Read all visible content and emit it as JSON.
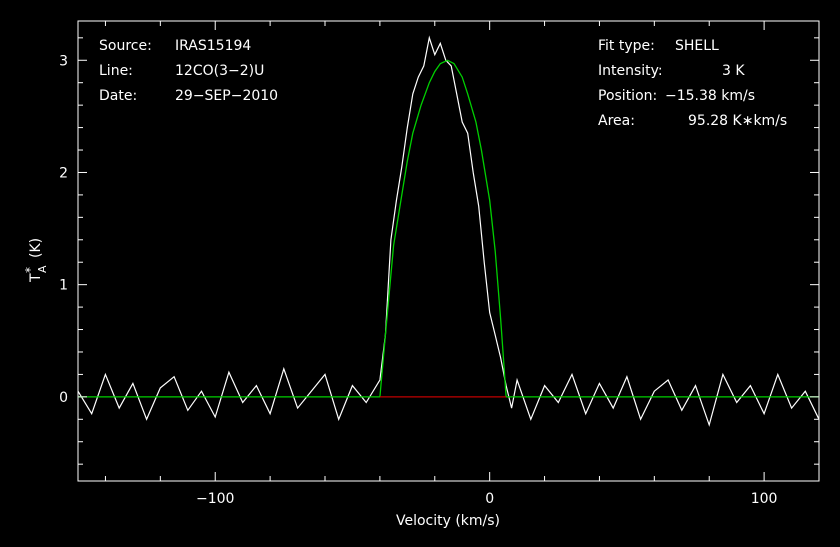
{
  "chart_data": {
    "type": "line",
    "xlabel": "Velocity (km/s)",
    "ylabel": "T",
    "ylabel_sub": "A",
    "ylabel_sup": "*",
    "ylabel_unit": "(K)",
    "xlim": [
      -150,
      120
    ],
    "ylim": [
      -0.75,
      3.35
    ],
    "x_ticks": [
      -100,
      0,
      100
    ],
    "x_tick_labels": [
      "−100",
      "0",
      "100"
    ],
    "y_ticks": [
      0,
      1,
      2,
      3
    ],
    "y_tick_labels": [
      "0",
      "1",
      "2",
      "3"
    ],
    "grid": false,
    "info_left": [
      {
        "key": "Source:",
        "value": "IRAS15194"
      },
      {
        "key": "Line:",
        "value": "12CO(3−2)U"
      },
      {
        "key": "Date:",
        "value": "29−SEP−2010"
      }
    ],
    "info_right": [
      {
        "key": "Fit type:",
        "value": "SHELL"
      },
      {
        "key": "Intensity:",
        "value": "3 K"
      },
      {
        "key": "Position:",
        "value": "−15.38 km/s"
      },
      {
        "key": "Area:",
        "value": "95.28 K∗km/s"
      }
    ],
    "series": [
      {
        "color": "#ffffff",
        "x": [
          -150,
          -145,
          -140,
          -135,
          -130,
          -125,
          -120,
          -115,
          -110,
          -105,
          -100,
          -95,
          -90,
          -85,
          -80,
          -75,
          -70,
          -65,
          -60,
          -55,
          -50,
          -45,
          -40,
          -38,
          -36,
          -34,
          -32,
          -30,
          -28,
          -26,
          -24,
          -22,
          -20,
          -18,
          -16,
          -14,
          -12,
          -10,
          -8,
          -6,
          -4,
          -2,
          0,
          2,
          4,
          6,
          8,
          10,
          15,
          20,
          25,
          30,
          35,
          40,
          45,
          50,
          55,
          60,
          65,
          70,
          75,
          80,
          85,
          90,
          95,
          100,
          105,
          110,
          115,
          120
        ],
        "y": [
          0.05,
          -0.15,
          0.2,
          -0.1,
          0.12,
          -0.2,
          0.08,
          0.18,
          -0.12,
          0.05,
          -0.18,
          0.22,
          -0.05,
          0.1,
          -0.15,
          0.25,
          -0.1,
          0.05,
          0.2,
          -0.2,
          0.1,
          -0.05,
          0.15,
          0.55,
          1.4,
          1.75,
          2.05,
          2.4,
          2.7,
          2.85,
          2.95,
          3.2,
          3.05,
          3.15,
          3.0,
          2.95,
          2.7,
          2.45,
          2.35,
          2.0,
          1.7,
          1.2,
          0.75,
          0.55,
          0.35,
          0.1,
          -0.1,
          0.15,
          -0.2,
          0.1,
          -0.05,
          0.2,
          -0.15,
          0.12,
          -0.1,
          0.18,
          -0.2,
          0.05,
          0.15,
          -0.12,
          0.1,
          -0.25,
          0.2,
          -0.05,
          0.1,
          -0.15,
          0.2,
          -0.1,
          0.05,
          -0.2
        ]
      },
      {
        "color": "#00d000",
        "x": [
          -150,
          -40,
          -38,
          -35,
          -32,
          -30,
          -28,
          -25,
          -22,
          -20,
          -18,
          -15.38,
          -13,
          -10,
          -8,
          -5,
          -3,
          0,
          2,
          4,
          5,
          6,
          120
        ],
        "y": [
          0,
          0,
          0.55,
          1.35,
          1.8,
          2.1,
          2.35,
          2.6,
          2.8,
          2.9,
          2.97,
          3.0,
          2.97,
          2.85,
          2.7,
          2.45,
          2.2,
          1.75,
          1.3,
          0.7,
          0.35,
          0,
          0
        ]
      },
      {
        "color": "#c00000",
        "x": [
          -40,
          6
        ],
        "y": [
          0,
          0
        ]
      }
    ]
  }
}
